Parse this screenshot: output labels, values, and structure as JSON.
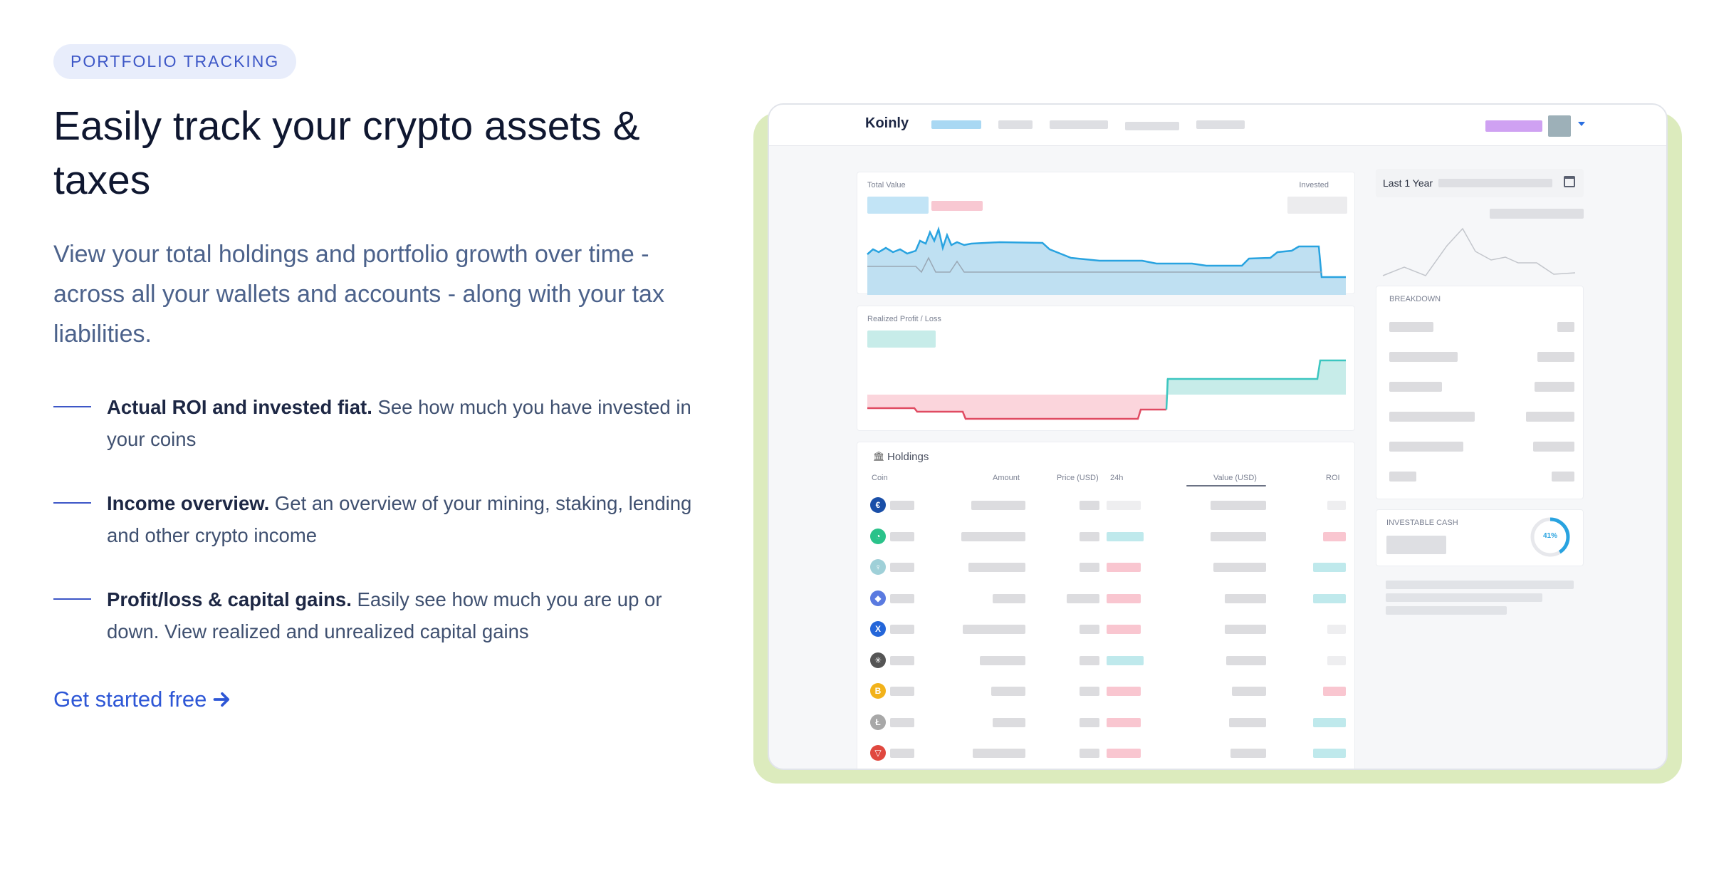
{
  "badge": "PORTFOLIO TRACKING",
  "headline": "Easily track your crypto assets & taxes",
  "lead": "View your total holdings and portfolio growth over time - across all your wallets and accounts - along with your tax liabilities.",
  "features": [
    {
      "title": "Actual ROI and invested fiat.",
      "text": " See how much you have invested in your coins"
    },
    {
      "title": "Income overview.",
      "text": " Get an overview of your mining, staking, lending and other crypto income"
    },
    {
      "title": "Profit/loss & capital gains.",
      "text": " Easily see how much you are up or down. View realized and unrealized capital gains"
    }
  ],
  "cta": {
    "label": "Get started free",
    "icon": "arrow-right-icon"
  },
  "app": {
    "brand": "Koinly",
    "total_value_label": "Total Value",
    "invested_label": "Invested",
    "realized_label": "Realized Profit / Loss",
    "holdings_title": "Holdings",
    "holdings_icon": "bank-icon",
    "columns": [
      "Coin",
      "Amount",
      "Price (USD)",
      "24h",
      "Value (USD)",
      "ROI"
    ],
    "period": "Last 1 Year",
    "breakdown_label": "BREAKDOWN",
    "investable_label": "INVESTABLE CASH",
    "investable_pct": "41%",
    "coins": [
      {
        "icon": "eur-coin-icon",
        "color": "#1a4fa8",
        "change": "neutral",
        "roi": "neutral"
      },
      {
        "icon": "celo-coin-icon",
        "color": "#2ac28a",
        "change": "up",
        "roi": "down"
      },
      {
        "icon": "cosmos-coin-icon",
        "color": "#9fd0d8",
        "change": "down",
        "roi": "up"
      },
      {
        "icon": "ethereum-coin-icon",
        "color": "#5a7ae0",
        "change": "down",
        "roi": "up"
      },
      {
        "icon": "xrp-x-coin-icon",
        "color": "#2466d9",
        "change": "down",
        "roi": "neutral"
      },
      {
        "icon": "iota-coin-icon",
        "color": "#555555",
        "change": "up",
        "roi": "neutral"
      },
      {
        "icon": "bitcoin-coin-icon",
        "color": "#f2b21a",
        "change": "down",
        "roi": "down"
      },
      {
        "icon": "litecoin-coin-icon",
        "color": "#a8a8a8",
        "change": "down",
        "roi": "up"
      },
      {
        "icon": "tron-coin-icon",
        "color": "#e0483f",
        "change": "down",
        "roi": "up"
      }
    ]
  },
  "colors": {
    "accent": "#3d57c7",
    "frame_green": "#dcebbd",
    "chart_blue": "#29a3e0",
    "chart_fill": "#bfe0f2",
    "profit": "#3cc6c0",
    "loss": "#e04b62"
  }
}
